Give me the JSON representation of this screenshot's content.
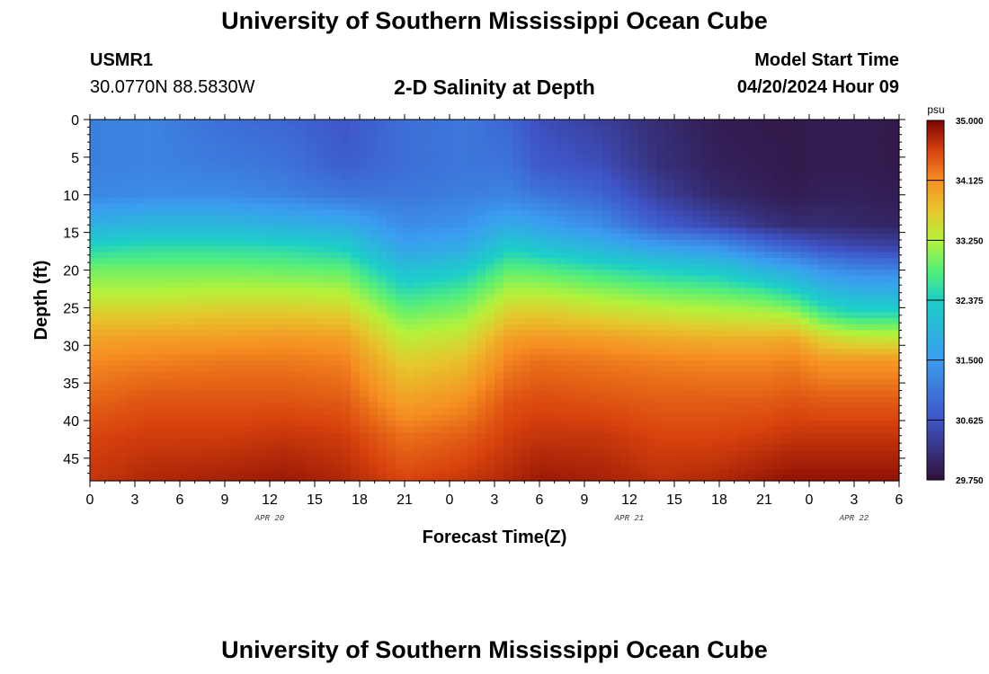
{
  "header": {
    "title": "University of Southern Mississippi Ocean Cube",
    "station_id": "USMR1",
    "coordinates": "30.0770N  88.5830W",
    "plot_title": "2-D Salinity at Depth",
    "model_start_label": "Model Start Time",
    "model_start_value": "04/20/2024 Hour 09"
  },
  "footer": {
    "title": "University of Southern Mississippi Ocean Cube"
  },
  "chart_data": {
    "type": "heatmap",
    "title": "2-D Salinity at Depth",
    "xlabel": "Forecast Time(Z)",
    "ylabel": "Depth (ft)",
    "units": "psu",
    "x_range_hours": [
      0,
      54
    ],
    "x_tick_labels": [
      "0",
      "3",
      "6",
      "9",
      "12",
      "15",
      "18",
      "21",
      "0",
      "3",
      "6",
      "9",
      "12",
      "15",
      "18",
      "21",
      "0",
      "3",
      "6"
    ],
    "date_labels": [
      {
        "text": "APR 20",
        "hour": 12
      },
      {
        "text": "APR 21",
        "hour": 36
      },
      {
        "text": "APR 22",
        "hour": 51
      }
    ],
    "y_range_ft": [
      0,
      48
    ],
    "y_ticks": [
      0,
      5,
      10,
      15,
      20,
      25,
      30,
      35,
      40,
      45
    ],
    "colorbar": {
      "min": 29.75,
      "max": 35.0,
      "tick_labels": [
        "35.000",
        "34.125",
        "33.250",
        "32.375",
        "31.500",
        "30.625",
        "29.750"
      ]
    },
    "column_hours": [
      0,
      4,
      9,
      13,
      17,
      21,
      25,
      28,
      30,
      34,
      38,
      42,
      45,
      47,
      49,
      51,
      54
    ],
    "profile_depths_ft": [
      0,
      6,
      10,
      14,
      17,
      20,
      23,
      26,
      29,
      32,
      37,
      42,
      48
    ],
    "salinity_profiles_psu": [
      [
        31.15,
        31.15,
        31.25,
        31.85,
        32.45,
        32.95,
        33.25,
        33.65,
        33.95,
        34.15,
        34.35,
        34.55,
        34.65
      ],
      [
        31.2,
        31.2,
        31.3,
        31.95,
        32.55,
        32.95,
        33.25,
        33.65,
        34.0,
        34.2,
        34.45,
        34.6,
        34.75
      ],
      [
        30.95,
        31.1,
        31.3,
        31.95,
        32.55,
        32.95,
        33.3,
        33.7,
        34.0,
        34.25,
        34.45,
        34.6,
        34.8
      ],
      [
        30.85,
        31.0,
        31.2,
        31.85,
        32.5,
        32.9,
        33.3,
        33.7,
        34.05,
        34.25,
        34.45,
        34.65,
        34.85
      ],
      [
        30.65,
        30.75,
        31.05,
        31.75,
        32.35,
        32.85,
        33.25,
        33.65,
        34.0,
        34.2,
        34.4,
        34.6,
        34.75
      ],
      [
        30.95,
        30.95,
        31.05,
        31.3,
        31.6,
        32.1,
        32.55,
        32.95,
        33.3,
        33.6,
        33.95,
        34.3,
        34.55
      ],
      [
        31.05,
        31.05,
        31.15,
        31.4,
        31.75,
        32.3,
        32.75,
        33.1,
        33.45,
        33.75,
        34.1,
        34.4,
        34.65
      ],
      [
        30.85,
        31.0,
        31.2,
        31.75,
        32.35,
        32.85,
        33.25,
        33.65,
        34.0,
        34.2,
        34.45,
        34.6,
        34.75
      ],
      [
        30.55,
        30.7,
        31.05,
        31.6,
        32.2,
        32.8,
        33.25,
        33.7,
        34.05,
        34.3,
        34.5,
        34.65,
        34.85
      ],
      [
        30.35,
        30.55,
        30.85,
        31.3,
        31.9,
        32.6,
        33.1,
        33.55,
        34.0,
        34.25,
        34.45,
        34.65,
        34.8
      ],
      [
        30.1,
        30.15,
        30.35,
        30.75,
        31.6,
        32.4,
        32.95,
        33.45,
        33.9,
        34.2,
        34.4,
        34.55,
        34.7
      ],
      [
        29.9,
        29.95,
        30.05,
        30.45,
        31.4,
        32.25,
        32.85,
        33.35,
        33.85,
        34.15,
        34.4,
        34.55,
        34.75
      ],
      [
        29.85,
        29.9,
        29.95,
        30.2,
        31.0,
        31.9,
        32.7,
        33.3,
        33.85,
        34.15,
        34.4,
        34.6,
        34.85
      ],
      [
        29.85,
        29.85,
        29.9,
        30.1,
        30.8,
        31.7,
        32.45,
        33.2,
        33.9,
        34.2,
        34.45,
        34.65,
        34.9
      ],
      [
        29.9,
        29.9,
        29.95,
        30.1,
        30.6,
        31.4,
        32.05,
        32.75,
        33.55,
        34.05,
        34.4,
        34.65,
        34.9
      ],
      [
        29.9,
        29.9,
        29.95,
        30.05,
        30.5,
        31.25,
        31.9,
        32.55,
        33.4,
        34.05,
        34.4,
        34.65,
        34.9
      ],
      [
        29.85,
        29.85,
        29.9,
        30.0,
        30.4,
        31.2,
        31.85,
        32.55,
        33.35,
        34.05,
        34.4,
        34.65,
        34.9
      ]
    ]
  }
}
